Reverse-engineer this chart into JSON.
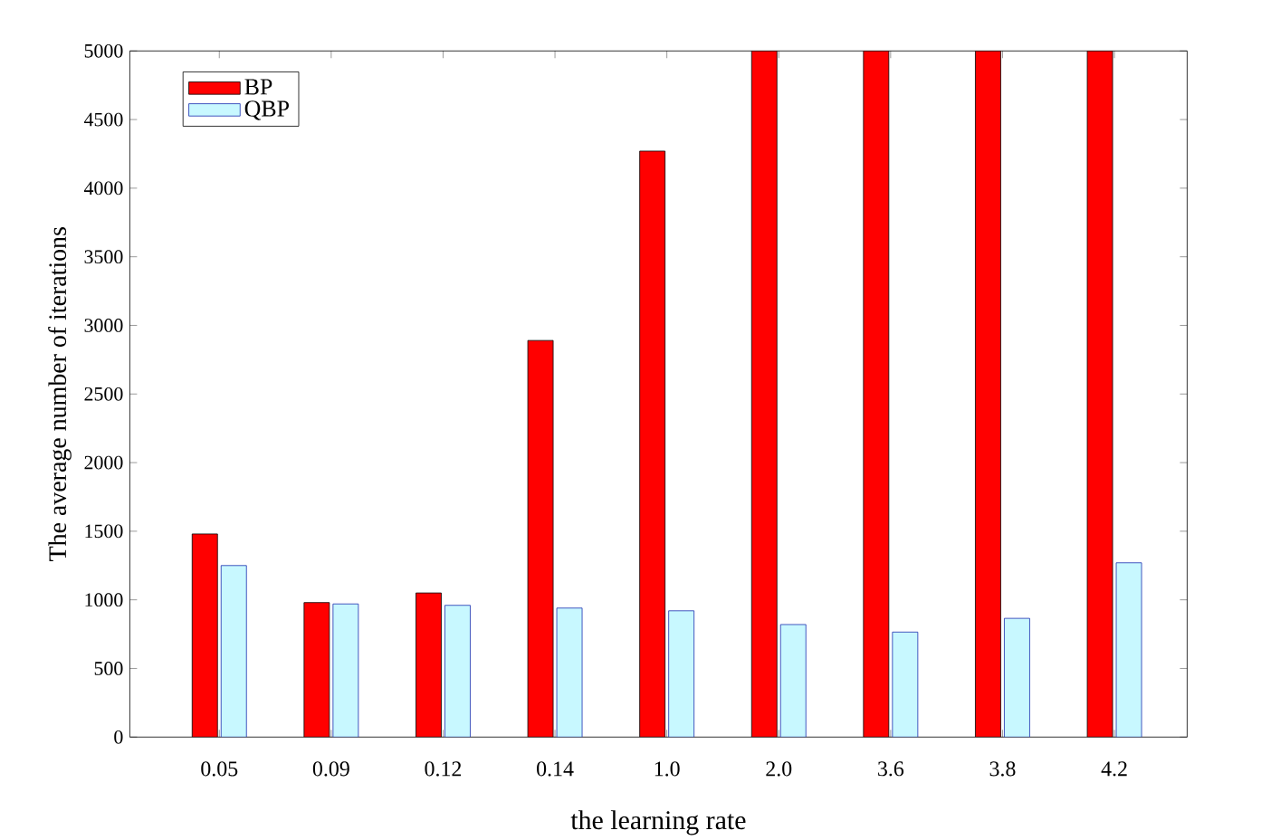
{
  "chart_data": {
    "type": "bar",
    "xlabel": "the learning rate",
    "ylabel": "The average number of iterations",
    "categories": [
      "0.05",
      "0.09",
      "0.12",
      "0.14",
      "1.0",
      "2.0",
      "3.6",
      "3.8",
      "4.2"
    ],
    "series": [
      {
        "name": "BP",
        "color": "#ff0000",
        "values": [
          1480,
          980,
          1050,
          2890,
          4270,
          5000,
          5000,
          5000,
          5000
        ]
      },
      {
        "name": "QBP",
        "color": "#c8f8ff",
        "values": [
          1250,
          970,
          960,
          940,
          920,
          820,
          765,
          865,
          1270
        ]
      }
    ],
    "ylim": [
      0,
      5000
    ],
    "yticks": [
      0,
      500,
      1000,
      1500,
      2000,
      2500,
      3000,
      3500,
      4000,
      4500,
      5000
    ],
    "legend": "top left",
    "grid": false
  }
}
